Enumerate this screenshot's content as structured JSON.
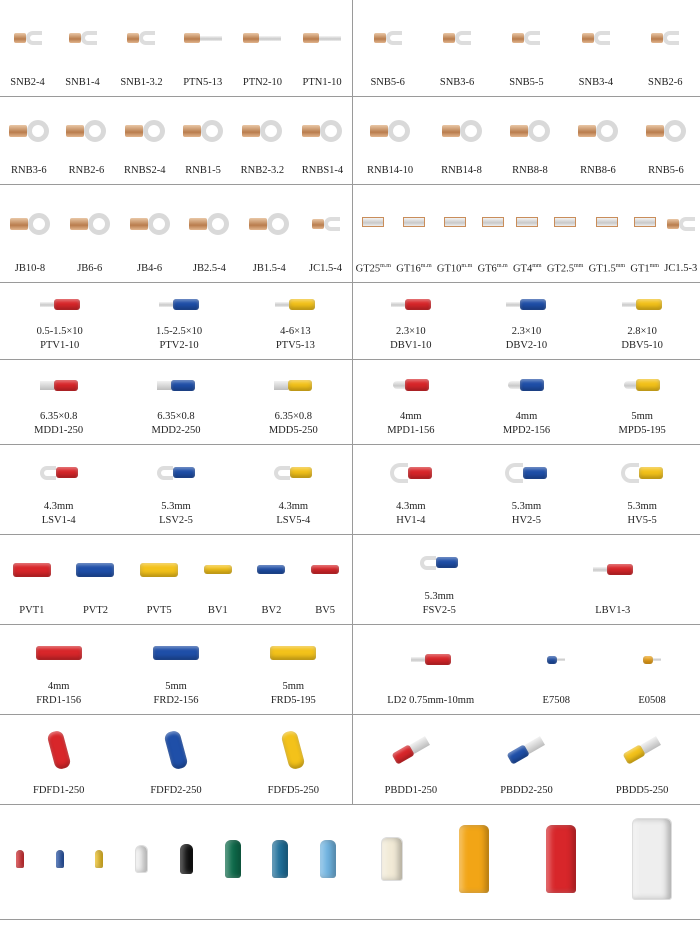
{
  "colors": {
    "red": "#d8262a",
    "blue": "#1f4fa8",
    "yellow": "#f3c21a",
    "white": "#eeeeee",
    "black": "#111111",
    "green": "#0e6b4b",
    "teal": "#1f6f9a",
    "lightblue": "#6fb3e0",
    "orange": "#f2a516",
    "cream": "#f1ead6"
  },
  "rows": [
    {
      "left": [
        {
          "label": "SNB2-4",
          "kind": "fork"
        },
        {
          "label": "SNB1-4",
          "kind": "fork"
        },
        {
          "label": "SNB1-3.2",
          "kind": "fork"
        },
        {
          "label": "PTN5-13",
          "kind": "pin"
        },
        {
          "label": "PTN2-10",
          "kind": "pin"
        },
        {
          "label": "PTN1-10",
          "kind": "pin"
        }
      ],
      "right": [
        {
          "label": "SNB5-6",
          "kind": "fork"
        },
        {
          "label": "SNB3-6",
          "kind": "fork"
        },
        {
          "label": "SNB5-5",
          "kind": "fork"
        },
        {
          "label": "SNB3-4",
          "kind": "fork"
        },
        {
          "label": "SNB2-6",
          "kind": "fork"
        }
      ]
    },
    {
      "left": [
        {
          "label": "RNB3-6",
          "kind": "ring"
        },
        {
          "label": "RNB2-6",
          "kind": "ring"
        },
        {
          "label": "RNBS2-4",
          "kind": "ring"
        },
        {
          "label": "RNB1-5",
          "kind": "ring"
        },
        {
          "label": "RNB2-3.2",
          "kind": "ring"
        },
        {
          "label": "RNBS1-4",
          "kind": "ring"
        }
      ],
      "right": [
        {
          "label": "RNB14-10",
          "kind": "ring"
        },
        {
          "label": "RNB14-8",
          "kind": "ring"
        },
        {
          "label": "RNB8-8",
          "kind": "ring"
        },
        {
          "label": "RNB8-6",
          "kind": "ring"
        },
        {
          "label": "RNB5-6",
          "kind": "ring"
        }
      ]
    },
    {
      "left": [
        {
          "label": "JB10-8",
          "kind": "ring"
        },
        {
          "label": "JB6-6",
          "kind": "ring"
        },
        {
          "label": "JB4-6",
          "kind": "ring"
        },
        {
          "label": "JB2.5-4",
          "kind": "ring"
        },
        {
          "label": "JB1.5-4",
          "kind": "ring"
        },
        {
          "label": "JC1.5-4",
          "kind": "fork"
        }
      ],
      "right": [
        {
          "label": "GT25",
          "sup": "m.m",
          "kind": "tube"
        },
        {
          "label": "GT16",
          "sup": "m.m",
          "kind": "tube"
        },
        {
          "label": "GT10",
          "sup": "m.m",
          "kind": "tube"
        },
        {
          "label": "GT6",
          "sup": "m.m",
          "kind": "tube"
        },
        {
          "label": "GT4",
          "sup": "mm",
          "kind": "tube"
        },
        {
          "label": "GT2.5",
          "sup": "mm",
          "kind": "tube"
        },
        {
          "label": "GT1.5",
          "sup": "mm",
          "kind": "tube"
        },
        {
          "label": "GT1",
          "sup": "mm",
          "kind": "tube"
        },
        {
          "label": "JC1.5-3",
          "kind": "fork"
        }
      ]
    },
    {
      "left": [
        {
          "spec": "0.5-1.5×10",
          "label": "PTV1-10",
          "kind": "ins-pin",
          "color": "red"
        },
        {
          "spec": "1.5-2.5×10",
          "label": "PTV2-10",
          "kind": "ins-pin",
          "color": "blue"
        },
        {
          "spec": "4-6×13",
          "label": "PTV5-13",
          "kind": "ins-pin",
          "color": "yellow"
        }
      ],
      "right": [
        {
          "spec": "2.3×10",
          "label": "DBV1-10",
          "kind": "ins-pin",
          "color": "red"
        },
        {
          "spec": "2.3×10",
          "label": "DBV2-10",
          "kind": "ins-pin",
          "color": "blue"
        },
        {
          "spec": "2.8×10",
          "label": "DBV5-10",
          "kind": "ins-pin",
          "color": "yellow"
        }
      ]
    },
    {
      "left": [
        {
          "spec": "6.35×0.8",
          "label": "MDD1-250",
          "kind": "ins-tab",
          "color": "red"
        },
        {
          "spec": "6.35×0.8",
          "label": "MDD2-250",
          "kind": "ins-tab",
          "color": "blue"
        },
        {
          "spec": "6.35×0.8",
          "label": "MDD5-250",
          "kind": "ins-tab",
          "color": "yellow"
        }
      ],
      "right": [
        {
          "spec": "4mm",
          "label": "MPD1-156",
          "kind": "ins-bullet",
          "color": "red"
        },
        {
          "spec": "4mm",
          "label": "MPD2-156",
          "kind": "ins-bullet",
          "color": "blue"
        },
        {
          "spec": "5mm",
          "label": "MPD5-195",
          "kind": "ins-bullet",
          "color": "yellow"
        }
      ]
    },
    {
      "left": [
        {
          "spec": "4.3mm",
          "label": "LSV1-4",
          "kind": "ins-fork",
          "color": "red"
        },
        {
          "spec": "5.3mm",
          "label": "LSV2-5",
          "kind": "ins-fork",
          "color": "blue"
        },
        {
          "spec": "4.3mm",
          "label": "LSV5-4",
          "kind": "ins-fork",
          "color": "yellow"
        }
      ],
      "right": [
        {
          "spec": "4.3mm",
          "label": "HV1-4",
          "kind": "ins-hook",
          "color": "red"
        },
        {
          "spec": "5.3mm",
          "label": "HV2-5",
          "kind": "ins-hook",
          "color": "blue"
        },
        {
          "spec": "5.3mm",
          "label": "HV5-5",
          "kind": "ins-hook",
          "color": "yellow"
        }
      ]
    },
    {
      "left": [
        {
          "label": "PVT1",
          "kind": "butt",
          "color": "red"
        },
        {
          "label": "PVT2",
          "kind": "butt",
          "color": "blue"
        },
        {
          "label": "PVT5",
          "kind": "butt",
          "color": "yellow"
        },
        {
          "label": "BV1",
          "kind": "butt-s",
          "color": "yellow"
        },
        {
          "label": "BV2",
          "kind": "butt-s",
          "color": "blue"
        },
        {
          "label": "BV5",
          "kind": "butt-s",
          "color": "red"
        }
      ],
      "right": [
        {
          "spec": "5.3mm",
          "label": "FSV2-5",
          "kind": "ins-fork",
          "color": "blue"
        },
        {
          "label": "LBV1-3",
          "kind": "ins-pin",
          "color": "red"
        }
      ]
    },
    {
      "left": [
        {
          "spec": "4mm",
          "label": "FRD1-156",
          "kind": "ins-female",
          "color": "red"
        },
        {
          "spec": "5mm",
          "label": "FRD2-156",
          "kind": "ins-female",
          "color": "blue"
        },
        {
          "spec": "5mm",
          "label": "FRD5-195",
          "kind": "ins-female",
          "color": "yellow"
        }
      ],
      "right": [
        {
          "label": "LD2 0.75mm-10mm",
          "kind": "ins-pin",
          "color": "red"
        },
        {
          "label": "E7508",
          "kind": "ferrule",
          "color": "blue"
        },
        {
          "label": "E0508",
          "kind": "ferrule",
          "color": "orange"
        }
      ]
    },
    {
      "left": [
        {
          "label": "FDFD1-250",
          "kind": "fdfd",
          "color": "red"
        },
        {
          "label": "FDFD2-250",
          "kind": "fdfd",
          "color": "blue"
        },
        {
          "label": "FDFD5-250",
          "kind": "fdfd",
          "color": "yellow"
        }
      ],
      "right": [
        {
          "label": "PBDD1-250",
          "kind": "pbdd",
          "color": "red"
        },
        {
          "label": "PBDD2-250",
          "kind": "pbdd",
          "color": "blue"
        },
        {
          "label": "PBDD5-250",
          "kind": "pbdd",
          "color": "yellow"
        }
      ]
    },
    {
      "left": [
        {
          "kind": "cap",
          "color": "red",
          "size": 1
        },
        {
          "kind": "cap",
          "color": "blue",
          "size": 1
        },
        {
          "kind": "cap",
          "color": "yellow",
          "size": 2
        },
        {
          "kind": "cap",
          "color": "white",
          "size": 3
        },
        {
          "kind": "cap",
          "color": "black",
          "size": 4
        },
        {
          "kind": "cap",
          "color": "green",
          "size": 5
        },
        {
          "kind": "cap",
          "color": "teal",
          "size": 5
        },
        {
          "kind": "cap",
          "color": "lightblue",
          "size": 5
        }
      ],
      "right": [
        {
          "kind": "cap",
          "color": "cream",
          "size": 6
        },
        {
          "kind": "cap",
          "color": "orange",
          "size": 7
        },
        {
          "kind": "cap",
          "color": "red",
          "size": 7
        },
        {
          "kind": "cap",
          "color": "white",
          "size": 8
        }
      ]
    }
  ]
}
